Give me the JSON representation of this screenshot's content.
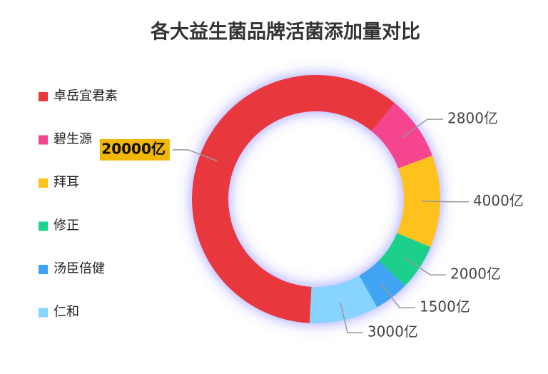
{
  "chart_data": {
    "type": "pie",
    "title": "各大益生菌品牌活菌添加量对比",
    "categories": [
      "卓岳宜君素",
      "碧生源",
      "拜耳",
      "修正",
      "汤臣倍健",
      "仁和"
    ],
    "values": [
      20000,
      2800,
      4000,
      2000,
      1500,
      3000
    ],
    "value_labels": [
      "20000亿",
      "2800亿",
      "4000亿",
      "2000亿",
      "1500亿",
      "3000亿"
    ],
    "colors": [
      "#e8383d",
      "#f5458f",
      "#ffc21a",
      "#1dd08c",
      "#3fa4f5",
      "#86d4ff"
    ],
    "highlight": 0,
    "legend": "left"
  }
}
